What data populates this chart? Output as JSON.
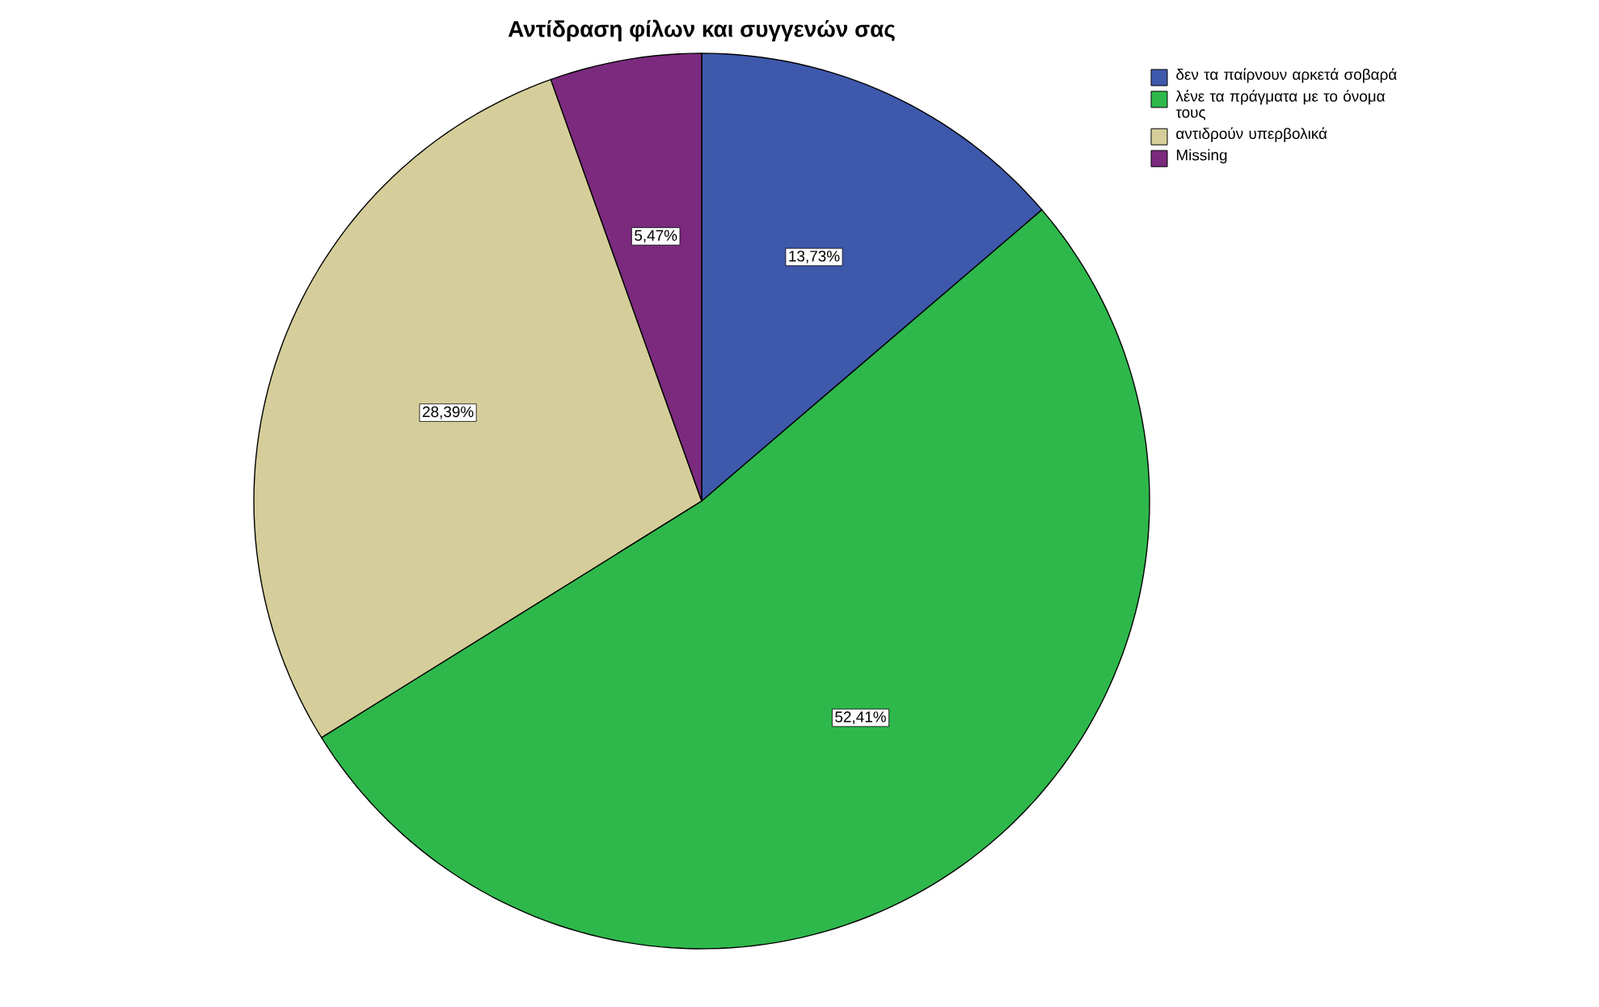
{
  "chart_data": {
    "type": "pie",
    "title": "Αντίδραση φίλων και συγγενών σας",
    "categories": [
      "δεν τα παίρνουν αρκετά σοβαρά",
      "λένε τα πράγματα με το όνομα τους",
      "αντιδρούν υπερβολικά",
      "Missing"
    ],
    "values": [
      13.73,
      52.41,
      28.39,
      5.47
    ],
    "colors": [
      "#3e58ac",
      "#2eb84b",
      "#d5ce9a",
      "#7b2a7e"
    ],
    "value_labels": [
      "13,73%",
      "52,41%",
      "28,39%",
      "5,47%"
    ],
    "legend": "top right"
  }
}
